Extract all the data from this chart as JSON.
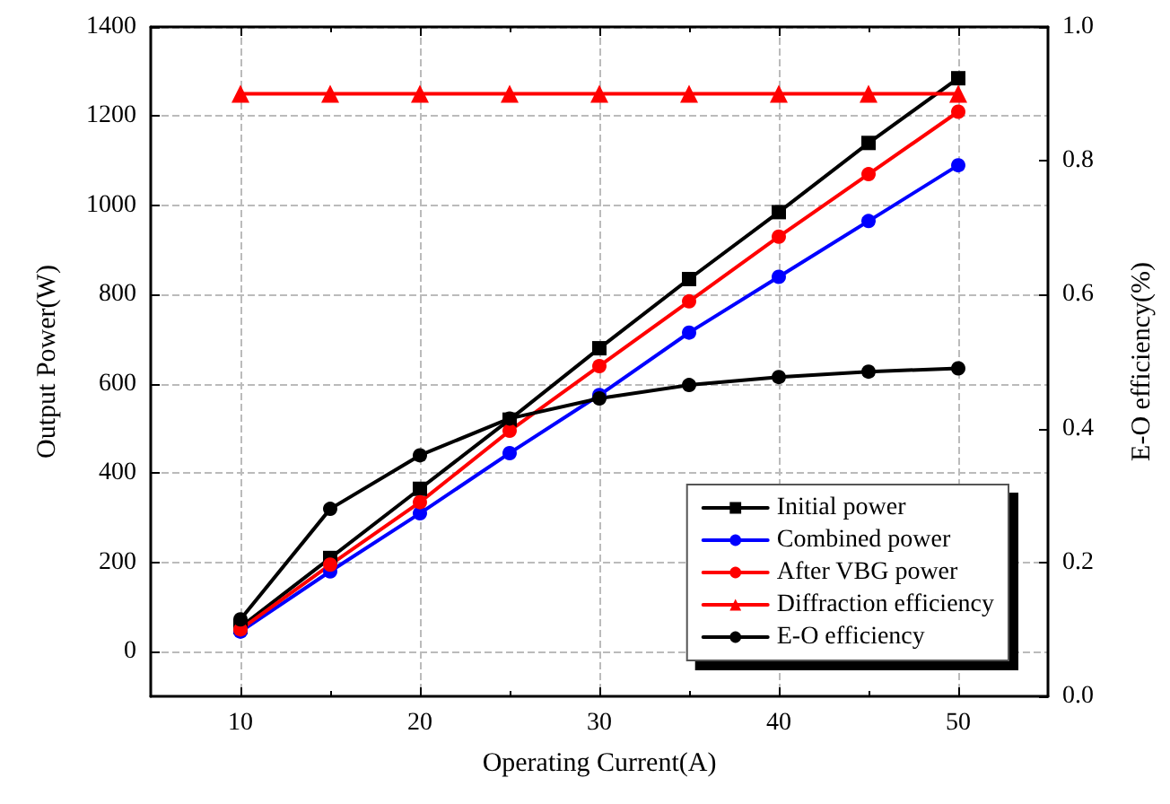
{
  "chart_data": {
    "type": "line",
    "xlabel": "Operating Current(A)",
    "ylabel": "Output Power(W)",
    "y2label": "E-O efficiency(%)",
    "x": [
      10,
      15,
      20,
      25,
      30,
      35,
      40,
      45,
      50
    ],
    "xlim": [
      5,
      55
    ],
    "xticks": [
      10,
      20,
      30,
      40,
      50
    ],
    "ylim": [
      -100,
      1400
    ],
    "yticks": [
      0,
      200,
      400,
      600,
      800,
      1000,
      1200,
      1400
    ],
    "y2lim": [
      0,
      1
    ],
    "y2ticks": [
      {
        "value": 0,
        "label": "0.0"
      },
      0.2,
      0.4,
      0.6,
      0.8,
      {
        "value": 1,
        "label": "1.0"
      }
    ],
    "grid": true,
    "legend": "bottom right",
    "series": [
      {
        "name": "Initial power",
        "color": "#000000",
        "marker": "square",
        "values": [
          55,
          210,
          365,
          520,
          680,
          835,
          985,
          1140,
          1285
        ]
      },
      {
        "name": "Combined power",
        "color": "#0000ff",
        "marker": "circle",
        "values": [
          45,
          180,
          310,
          445,
          575,
          715,
          840,
          965,
          1090
        ]
      },
      {
        "name": "After VBG power",
        "color": "#ff0000",
        "marker": "circle",
        "values": [
          50,
          195,
          335,
          495,
          640,
          785,
          930,
          1070,
          1210
        ]
      },
      {
        "name": "Diffraction efficiency",
        "color": "#ff0000",
        "marker": "triangle",
        "axis": "y2",
        "values": [
          0.9,
          0.9,
          0.9,
          0.9,
          0.9,
          0.9,
          0.9,
          0.9,
          0.9
        ]
      },
      {
        "name": "E-O efficiency",
        "color": "#000000",
        "marker": "circle",
        "axis": "y2",
        "values": [
          0.115,
          0.28,
          0.36,
          0.415,
          0.445,
          0.465,
          0.477,
          0.485,
          0.49
        ]
      }
    ]
  }
}
